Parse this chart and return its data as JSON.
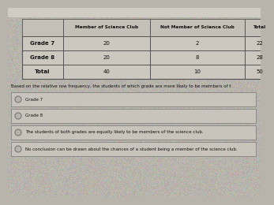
{
  "col_headers": [
    "",
    "Member of Science Club",
    "Not Member of Science Club",
    "Total"
  ],
  "rows": [
    [
      "Grade 7",
      "20",
      "2",
      "22"
    ],
    [
      "Grade 8",
      "20",
      "8",
      "28"
    ],
    [
      "Total",
      "40",
      "10",
      "50"
    ]
  ],
  "question": "Based on the relative row frequency, the students of which grade are more likely to be members of t",
  "options": [
    "Grade 7",
    "Grade 8",
    "The students of both grades are equally likely to be members of the science club.",
    "No conclusion can be drawn about the chances of a student being a member of the science club."
  ],
  "bg_color": "#b8b4ac",
  "table_bg": "#d4d0ca",
  "header_bg": "#c4c0b8",
  "cell_bg": "#ccc8c0",
  "border_color": "#555555",
  "text_color": "#111111",
  "option_bg": "#c8c4bc",
  "option_border": "#777777",
  "top_bar_color": "#c0bcb4"
}
